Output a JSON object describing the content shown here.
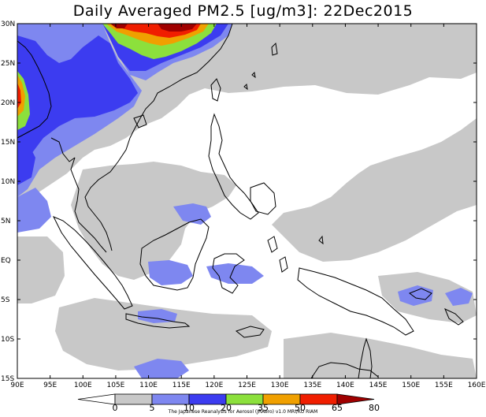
{
  "title": "Daily Averaged PM2.5 [ug/m3]: 22Dec2015",
  "credit": "The Japanese Reanalysis for Aerosol (JRAero) v1.0 MRI/KU RIAM",
  "axes": {
    "lon_labels": [
      "90E",
      "95E",
      "100E",
      "105E",
      "110E",
      "115E",
      "120E",
      "125E",
      "130E",
      "135E",
      "140E",
      "145E",
      "150E",
      "155E",
      "160E"
    ],
    "lat_labels": [
      "30N",
      "25N",
      "20N",
      "15N",
      "10N",
      "5N",
      "EQ",
      "5S",
      "10S",
      "15S"
    ]
  },
  "colorbar": {
    "levels": [
      "0",
      "5",
      "10",
      "20",
      "35",
      "50",
      "65",
      "80"
    ],
    "colors": [
      "#ffffff",
      "#c8c8c8",
      "#7e87f0",
      "#3c3cf0",
      "#8ce03c",
      "#f0a000",
      "#f01e00",
      "#a00000"
    ]
  },
  "map": {
    "lon_range": [
      90,
      160
    ],
    "lat_range": [
      -15,
      30
    ],
    "frame_color": "#000000",
    "coast_color": "#000000"
  }
}
